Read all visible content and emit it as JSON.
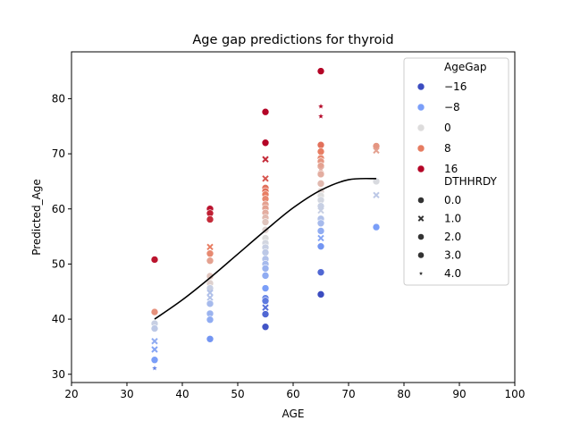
{
  "chart_data": {
    "type": "scatter",
    "title": "Age gap predictions for thyroid",
    "xlabel": "AGE",
    "ylabel": "Predicted_Age",
    "xlim": [
      20,
      100
    ],
    "ylim": [
      28.5,
      88.5
    ],
    "xticks": [
      20,
      30,
      40,
      50,
      60,
      70,
      80,
      90,
      100
    ],
    "yticks": [
      30,
      40,
      50,
      60,
      70,
      80
    ],
    "grid": false,
    "legend_position": "top-right",
    "legend": {
      "hue_title": "AgeGap",
      "hue_entries": [
        {
          "label": "−16",
          "color": "#3b4cc0"
        },
        {
          "label": "−8",
          "color": "#7b9ff9"
        },
        {
          "label": "0",
          "color": "#dddcdc"
        },
        {
          "label": "8",
          "color": "#e67c61"
        },
        {
          "label": "16",
          "color": "#b40426"
        }
      ],
      "style_title": "DTHHRDY",
      "style_entries": [
        {
          "label": "0.0",
          "marker": "circle"
        },
        {
          "label": "1.0",
          "marker": "x"
        },
        {
          "label": "2.0",
          "marker": "circle"
        },
        {
          "label": "3.0",
          "marker": "circle"
        },
        {
          "label": "4.0",
          "marker": "star"
        }
      ]
    },
    "trend_line": {
      "name": "",
      "color": "#000000",
      "points": [
        [
          35,
          40.0
        ],
        [
          40,
          43.5
        ],
        [
          45,
          47.5
        ],
        [
          50,
          51.8
        ],
        [
          55,
          56.1
        ],
        [
          60,
          60.2
        ],
        [
          65,
          63.4
        ],
        [
          70,
          65.3
        ],
        [
          75,
          65.5
        ]
      ]
    },
    "points": [
      {
        "x": 35,
        "y": 50.8,
        "gap": 15.8,
        "dthhrdy": 0
      },
      {
        "x": 35,
        "y": 41.3,
        "gap": 6.3,
        "dthhrdy": 0
      },
      {
        "x": 35,
        "y": 39.2,
        "gap": -2,
        "dthhrdy": 0
      },
      {
        "x": 35,
        "y": 38.3,
        "gap": -3,
        "dthhrdy": 0
      },
      {
        "x": 35,
        "y": 36.0,
        "gap": -7,
        "dthhrdy": 1
      },
      {
        "x": 35,
        "y": 34.5,
        "gap": -8,
        "dthhrdy": 1
      },
      {
        "x": 35,
        "y": 32.6,
        "gap": -9,
        "dthhrdy": 0
      },
      {
        "x": 35,
        "y": 31.1,
        "gap": -12,
        "dthhrdy": 4
      },
      {
        "x": 45,
        "y": 60.0,
        "gap": 16,
        "dthhrdy": 0
      },
      {
        "x": 45,
        "y": 59.2,
        "gap": 15,
        "dthhrdy": 0
      },
      {
        "x": 45,
        "y": 58.1,
        "gap": 14,
        "dthhrdy": 0
      },
      {
        "x": 45,
        "y": 53.1,
        "gap": 8,
        "dthhrdy": 1
      },
      {
        "x": 45,
        "y": 51.9,
        "gap": 7,
        "dthhrdy": 0
      },
      {
        "x": 45,
        "y": 50.6,
        "gap": 5,
        "dthhrdy": 0
      },
      {
        "x": 45,
        "y": 47.8,
        "gap": 2,
        "dthhrdy": 0
      },
      {
        "x": 45,
        "y": 46.5,
        "gap": 1,
        "dthhrdy": 0
      },
      {
        "x": 45,
        "y": 45.6,
        "gap": -2,
        "dthhrdy": 0
      },
      {
        "x": 45,
        "y": 44.8,
        "gap": -4,
        "dthhrdy": 1
      },
      {
        "x": 45,
        "y": 43.9,
        "gap": -4,
        "dthhrdy": 1
      },
      {
        "x": 45,
        "y": 42.8,
        "gap": -5,
        "dthhrdy": 0
      },
      {
        "x": 45,
        "y": 41.0,
        "gap": -6,
        "dthhrdy": 0
      },
      {
        "x": 45,
        "y": 39.9,
        "gap": -7,
        "dthhrdy": 0
      },
      {
        "x": 45,
        "y": 36.4,
        "gap": -10,
        "dthhrdy": 0
      },
      {
        "x": 55,
        "y": 77.6,
        "gap": 22,
        "dthhrdy": 0
      },
      {
        "x": 55,
        "y": 72.0,
        "gap": 17,
        "dthhrdy": 0
      },
      {
        "x": 55,
        "y": 69.0,
        "gap": 14,
        "dthhrdy": 1
      },
      {
        "x": 55,
        "y": 65.5,
        "gap": 11,
        "dthhrdy": 1
      },
      {
        "x": 55,
        "y": 63.8,
        "gap": 9,
        "dthhrdy": 0
      },
      {
        "x": 55,
        "y": 63.2,
        "gap": 9,
        "dthhrdy": 0
      },
      {
        "x": 55,
        "y": 62.6,
        "gap": 8,
        "dthhrdy": 0
      },
      {
        "x": 55,
        "y": 61.8,
        "gap": 7,
        "dthhrdy": 0
      },
      {
        "x": 55,
        "y": 60.8,
        "gap": 5,
        "dthhrdy": 0
      },
      {
        "x": 55,
        "y": 60.1,
        "gap": 5,
        "dthhrdy": 0
      },
      {
        "x": 55,
        "y": 59.3,
        "gap": 4,
        "dthhrdy": 0
      },
      {
        "x": 55,
        "y": 58.4,
        "gap": 3,
        "dthhrdy": 0
      },
      {
        "x": 55,
        "y": 57.6,
        "gap": 2,
        "dthhrdy": 0
      },
      {
        "x": 55,
        "y": 56.2,
        "gap": 1,
        "dthhrdy": 0
      },
      {
        "x": 55,
        "y": 54.7,
        "gap": 0,
        "dthhrdy": 0
      },
      {
        "x": 55,
        "y": 53.8,
        "gap": -1,
        "dthhrdy": 0
      },
      {
        "x": 55,
        "y": 53.0,
        "gap": -2,
        "dthhrdy": 0
      },
      {
        "x": 55,
        "y": 52.1,
        "gap": -3,
        "dthhrdy": 0
      },
      {
        "x": 55,
        "y": 50.9,
        "gap": -4,
        "dthhrdy": 0
      },
      {
        "x": 55,
        "y": 50.0,
        "gap": -5,
        "dthhrdy": 0
      },
      {
        "x": 55,
        "y": 49.2,
        "gap": -6,
        "dthhrdy": 0
      },
      {
        "x": 55,
        "y": 47.9,
        "gap": -7,
        "dthhrdy": 0
      },
      {
        "x": 55,
        "y": 45.6,
        "gap": -9,
        "dthhrdy": 0
      },
      {
        "x": 55,
        "y": 43.8,
        "gap": -12,
        "dthhrdy": 0
      },
      {
        "x": 55,
        "y": 43.3,
        "gap": -13,
        "dthhrdy": 0
      },
      {
        "x": 55,
        "y": 42.1,
        "gap": -14,
        "dthhrdy": 1
      },
      {
        "x": 55,
        "y": 40.9,
        "gap": -15,
        "dthhrdy": 0
      },
      {
        "x": 55,
        "y": 38.6,
        "gap": -17,
        "dthhrdy": 0
      },
      {
        "x": 65,
        "y": 85.0,
        "gap": 20,
        "dthhrdy": 0
      },
      {
        "x": 65,
        "y": 78.6,
        "gap": 18,
        "dthhrdy": 4
      },
      {
        "x": 65,
        "y": 76.8,
        "gap": 17,
        "dthhrdy": 4
      },
      {
        "x": 65,
        "y": 71.6,
        "gap": 9,
        "dthhrdy": 0
      },
      {
        "x": 65,
        "y": 70.4,
        "gap": 8,
        "dthhrdy": 0
      },
      {
        "x": 65,
        "y": 69.2,
        "gap": 7,
        "dthhrdy": 0
      },
      {
        "x": 65,
        "y": 68.6,
        "gap": 6,
        "dthhrdy": 0
      },
      {
        "x": 65,
        "y": 67.8,
        "gap": 5,
        "dthhrdy": 0
      },
      {
        "x": 65,
        "y": 67.1,
        "gap": 4,
        "dthhrdy": 1
      },
      {
        "x": 65,
        "y": 66.3,
        "gap": 4,
        "dthhrdy": 0
      },
      {
        "x": 65,
        "y": 64.6,
        "gap": 3,
        "dthhrdy": 0
      },
      {
        "x": 65,
        "y": 63.2,
        "gap": 1,
        "dthhrdy": 0
      },
      {
        "x": 65,
        "y": 62.4,
        "gap": 0,
        "dthhrdy": 0
      },
      {
        "x": 65,
        "y": 61.6,
        "gap": -1,
        "dthhrdy": 0
      },
      {
        "x": 65,
        "y": 60.5,
        "gap": -2,
        "dthhrdy": 0
      },
      {
        "x": 65,
        "y": 59.7,
        "gap": -2,
        "dthhrdy": 1
      },
      {
        "x": 65,
        "y": 58.2,
        "gap": -4,
        "dthhrdy": 0
      },
      {
        "x": 65,
        "y": 57.4,
        "gap": -5,
        "dthhrdy": 0
      },
      {
        "x": 65,
        "y": 56.0,
        "gap": -7,
        "dthhrdy": 0
      },
      {
        "x": 65,
        "y": 54.7,
        "gap": -8,
        "dthhrdy": 1
      },
      {
        "x": 65,
        "y": 53.2,
        "gap": -10,
        "dthhrdy": 0
      },
      {
        "x": 65,
        "y": 48.5,
        "gap": -15,
        "dthhrdy": 0
      },
      {
        "x": 65,
        "y": 44.5,
        "gap": -18,
        "dthhrdy": 0
      },
      {
        "x": 75,
        "y": 71.4,
        "gap": 6,
        "dthhrdy": 0
      },
      {
        "x": 75,
        "y": 70.6,
        "gap": 5,
        "dthhrdy": 1
      },
      {
        "x": 75,
        "y": 65.0,
        "gap": -0.5,
        "dthhrdy": 0
      },
      {
        "x": 75,
        "y": 62.5,
        "gap": -3,
        "dthhrdy": 1
      },
      {
        "x": 75,
        "y": 56.7,
        "gap": -9,
        "dthhrdy": 0
      }
    ]
  }
}
